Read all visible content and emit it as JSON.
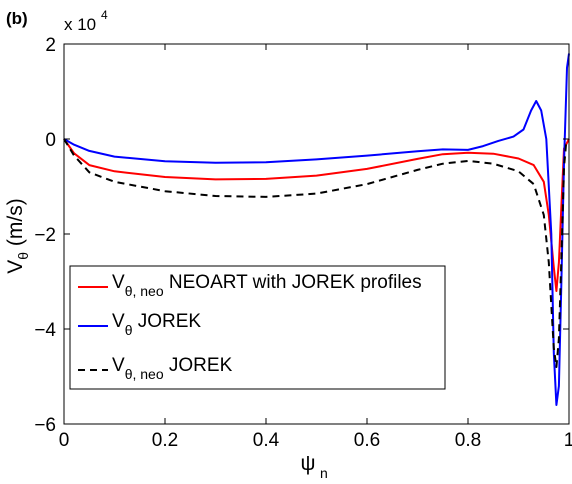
{
  "panel_label": "(b)",
  "chart_data": {
    "type": "line",
    "xlabel": "ψ",
    "xlabel_sub": "n",
    "ylabel_main": "V",
    "ylabel_sub": "θ",
    "ylabel_unit": " (m/s)",
    "y_multiplier_text": "x 10",
    "y_multiplier_exp": "4",
    "xlim": [
      0,
      1
    ],
    "ylim": [
      -6,
      2
    ],
    "y_scale": 10000,
    "xticks": [
      0,
      0.2,
      0.4,
      0.6,
      0.8,
      1
    ],
    "xtick_labels": [
      "0",
      "0.2",
      "0.4",
      "0.6",
      "0.8",
      "1"
    ],
    "yticks": [
      2,
      0,
      -2,
      -4,
      -6
    ],
    "ytick_labels": [
      "2",
      "0",
      "−2",
      "−4",
      "−6"
    ],
    "legend_position": "lower-left",
    "series": [
      {
        "name": "V",
        "name_sub": "θ, neo",
        "name_rest": " NEOART with JOREK profiles",
        "color": "#ff0000",
        "dash": "",
        "x": [
          0,
          0.02,
          0.05,
          0.1,
          0.2,
          0.3,
          0.4,
          0.5,
          0.6,
          0.7,
          0.75,
          0.8,
          0.85,
          0.9,
          0.93,
          0.95,
          0.96,
          0.97,
          0.975,
          0.98,
          0.985,
          0.99,
          1.0
        ],
        "y": [
          0,
          -3000,
          -5500,
          -6800,
          -8000,
          -8500,
          -8400,
          -7700,
          -6300,
          -4200,
          -3200,
          -2900,
          -3100,
          -4100,
          -5500,
          -9000,
          -16000,
          -27000,
          -32000,
          -26000,
          -14000,
          -2000,
          0
        ]
      },
      {
        "name": "V",
        "name_sub": "θ",
        "name_rest": " JOREK",
        "color": "#0000ff",
        "dash": "",
        "x": [
          0,
          0.02,
          0.05,
          0.1,
          0.2,
          0.3,
          0.4,
          0.5,
          0.6,
          0.7,
          0.75,
          0.8,
          0.83,
          0.86,
          0.89,
          0.91,
          0.925,
          0.935,
          0.945,
          0.955,
          0.965,
          0.97,
          0.975,
          0.98,
          0.985,
          0.99,
          0.993,
          0.996,
          1.0
        ],
        "y": [
          0,
          -1200,
          -2500,
          -3700,
          -4700,
          -5000,
          -4900,
          -4300,
          -3500,
          -2600,
          -2200,
          -2300,
          -1500,
          -400,
          500,
          2000,
          6000,
          8000,
          6000,
          0,
          -20000,
          -45000,
          -56000,
          -52000,
          -30000,
          -5000,
          5000,
          15000,
          18000
        ]
      },
      {
        "name": "V",
        "name_sub": "θ, neo",
        "name_rest": " JOREK",
        "color": "#000000",
        "dash": "7,5",
        "x": [
          0,
          0.02,
          0.05,
          0.1,
          0.2,
          0.3,
          0.4,
          0.5,
          0.6,
          0.7,
          0.75,
          0.8,
          0.85,
          0.9,
          0.93,
          0.95,
          0.96,
          0.965,
          0.97,
          0.975,
          0.98,
          0.985,
          0.99,
          0.995
        ],
        "y": [
          0,
          -3500,
          -7000,
          -9000,
          -11000,
          -12000,
          -12200,
          -11500,
          -9500,
          -6500,
          -5200,
          -4600,
          -5200,
          -6800,
          -9500,
          -16000,
          -26000,
          -35000,
          -44000,
          -48000,
          -42000,
          -25000,
          -6000,
          0
        ]
      }
    ]
  }
}
